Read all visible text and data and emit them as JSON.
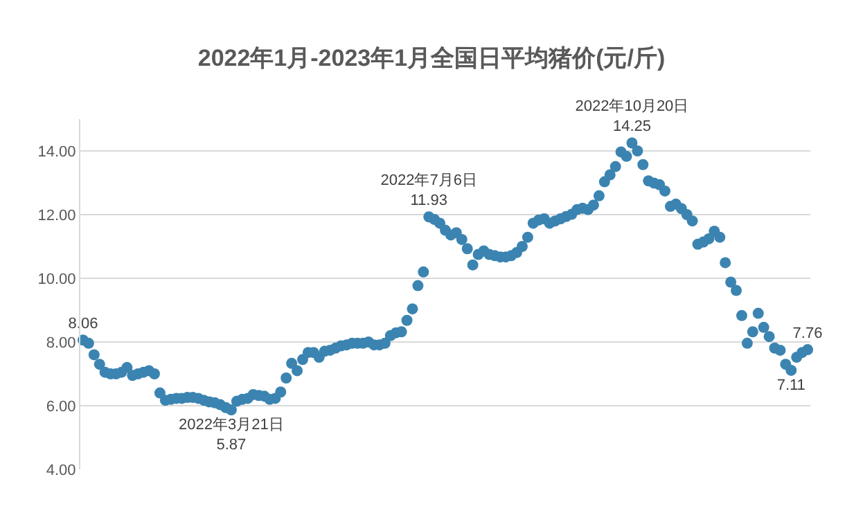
{
  "chart_data": {
    "type": "scatter",
    "title": "2022年1月-2023年1月全国日平均猪价(元/斤)",
    "categories": [
      null,
      null,
      null,
      null,
      null,
      null,
      null,
      null,
      null,
      null,
      null,
      null,
      null,
      null,
      null,
      null,
      null,
      null,
      null,
      null,
      null,
      null,
      null,
      null,
      null,
      null,
      null,
      null,
      null,
      null,
      null,
      null,
      null,
      null,
      null,
      null,
      null,
      null,
      null,
      null,
      null,
      null,
      null,
      null,
      null,
      null,
      null,
      null,
      null,
      null,
      null,
      null,
      null,
      null,
      null,
      null,
      null,
      null,
      null,
      null,
      null,
      null,
      null,
      null,
      null,
      null,
      null,
      null,
      null,
      null,
      null,
      null,
      null,
      null,
      null,
      null,
      null,
      null,
      null,
      null,
      null,
      null,
      null,
      null,
      null,
      null,
      null,
      null,
      null,
      null,
      null,
      null,
      null,
      null,
      null,
      null,
      null,
      null,
      null,
      null,
      null,
      null,
      null,
      null,
      null,
      null,
      null,
      null,
      null,
      null,
      null,
      null,
      null,
      null,
      null,
      null,
      null,
      null,
      null,
      null,
      null,
      null,
      null,
      null,
      null,
      null,
      null,
      null,
      null,
      null,
      null,
      null,
      null
    ],
    "series": [
      {
        "color": "#3b84b1",
        "values": [
          8.06,
          7.96,
          7.6,
          7.3,
          7.05,
          7.0,
          7.0,
          7.05,
          7.2,
          6.95,
          7.0,
          7.05,
          7.1,
          7.0,
          6.4,
          6.17,
          6.2,
          6.23,
          6.23,
          6.26,
          6.26,
          6.23,
          6.17,
          6.12,
          6.09,
          6.03,
          5.94,
          5.87,
          6.14,
          6.2,
          6.23,
          6.35,
          6.32,
          6.3,
          6.2,
          6.23,
          6.43,
          6.87,
          7.33,
          7.1,
          7.45,
          7.67,
          7.67,
          7.52,
          7.71,
          7.74,
          7.81,
          7.88,
          7.91,
          7.96,
          7.96,
          7.96,
          8.0,
          7.91,
          7.91,
          7.96,
          8.2,
          8.29,
          8.32,
          8.68,
          9.04,
          9.77,
          10.2,
          11.93,
          11.85,
          11.73,
          11.51,
          11.36,
          11.43,
          11.22,
          10.93,
          10.42,
          10.75,
          10.86,
          10.75,
          10.71,
          10.67,
          10.67,
          10.71,
          10.81,
          11.0,
          11.29,
          11.73,
          11.83,
          11.87,
          11.73,
          11.8,
          11.87,
          11.94,
          12.01,
          12.16,
          12.2,
          12.16,
          12.3,
          12.59,
          13.03,
          13.25,
          13.51,
          13.97,
          13.83,
          14.25,
          14.0,
          13.57,
          13.06,
          12.99,
          12.94,
          12.74,
          12.26,
          12.33,
          12.19,
          12.0,
          11.8,
          11.07,
          11.14,
          11.24,
          11.48,
          11.29,
          10.49,
          9.88,
          9.62,
          8.83,
          7.96,
          8.32,
          8.9,
          8.46,
          8.17,
          7.81,
          7.74,
          7.3,
          7.11,
          7.52,
          7.67,
          7.76
        ],
        "value_labels": [
          "8.06",
          null,
          null,
          null,
          null,
          null,
          null,
          null,
          null,
          null,
          null,
          null,
          null,
          null,
          null,
          null,
          null,
          null,
          null,
          null,
          null,
          null,
          null,
          null,
          null,
          null,
          null,
          "2022年3月21日\n5.87",
          null,
          null,
          null,
          null,
          null,
          null,
          null,
          null,
          null,
          null,
          null,
          null,
          null,
          null,
          null,
          null,
          null,
          null,
          null,
          null,
          null,
          null,
          null,
          null,
          null,
          null,
          null,
          null,
          null,
          null,
          null,
          null,
          null,
          null,
          null,
          "2022年7月6日\n11.93",
          null,
          null,
          null,
          null,
          null,
          null,
          null,
          null,
          null,
          null,
          null,
          null,
          null,
          null,
          null,
          null,
          null,
          null,
          null,
          null,
          null,
          null,
          null,
          null,
          null,
          null,
          null,
          null,
          null,
          null,
          null,
          null,
          null,
          null,
          null,
          null,
          "2022年10月20日\n14.25",
          null,
          null,
          null,
          null,
          null,
          null,
          null,
          null,
          null,
          null,
          null,
          null,
          null,
          null,
          null,
          null,
          null,
          null,
          null,
          null,
          null,
          null,
          null,
          null,
          null,
          null,
          null,
          null,
          "7.11",
          null,
          null,
          "7.76"
        ]
      }
    ],
    "ylim": [
      4,
      15
    ],
    "yticks": [
      {
        "value": 4,
        "label": "4.00"
      },
      {
        "value": 6,
        "label": "6.00"
      },
      {
        "value": 8,
        "label": "8.00"
      },
      {
        "value": 10,
        "label": "10.00"
      },
      {
        "value": 12,
        "label": "12.00"
      },
      {
        "value": 14,
        "label": "14.00"
      }
    ],
    "grid": "y",
    "legend": false,
    "marker": "circle",
    "tick_labels": "y"
  }
}
